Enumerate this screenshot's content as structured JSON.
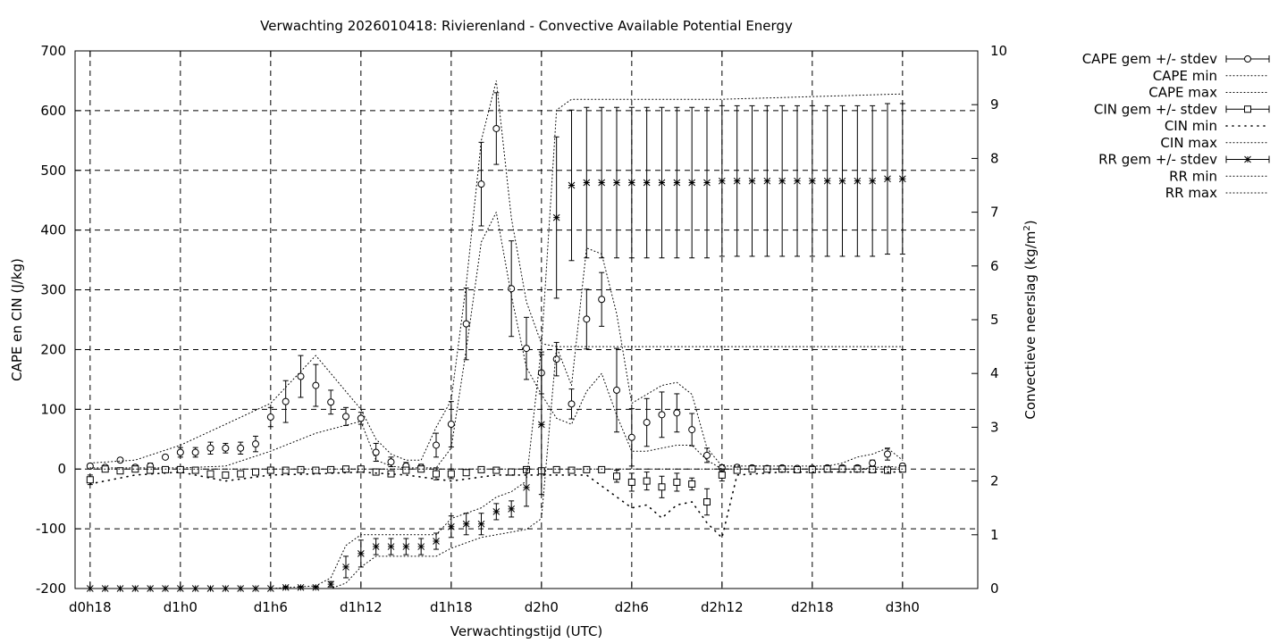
{
  "chart_data": {
    "type": "line",
    "title": "Verwachting 2026010418: Rivierenland - Convective Available Potential Energy",
    "xlabel": "Verwachtingstijd (UTC)",
    "ylabel": "CAPE en CIN (J/kg)",
    "y2label_main": "Convectieve neerslag (kg/m",
    "y2label_sup": "2",
    "y2label_end": ")",
    "x_range_hours": [
      -7,
      53
    ],
    "ylim": [
      -200,
      700
    ],
    "y2lim": [
      0,
      10
    ],
    "grid": true,
    "x_ticks": [
      {
        "label": "d0h18",
        "hour": -6
      },
      {
        "label": "d1h0",
        "hour": 0
      },
      {
        "label": "d1h6",
        "hour": 6
      },
      {
        "label": "d1h12",
        "hour": 12
      },
      {
        "label": "d1h18",
        "hour": 18
      },
      {
        "label": "d2h0",
        "hour": 24
      },
      {
        "label": "d2h6",
        "hour": 30
      },
      {
        "label": "d2h12",
        "hour": 36
      },
      {
        "label": "d2h18",
        "hour": 42
      },
      {
        "label": "d3h0",
        "hour": 48
      }
    ],
    "y_ticks": [
      -200,
      -100,
      0,
      100,
      200,
      300,
      400,
      500,
      600,
      700
    ],
    "y2_ticks": [
      0,
      1,
      2,
      3,
      4,
      5,
      6,
      7,
      8,
      9,
      10
    ],
    "legend": {
      "placement": "outside-right",
      "entries": [
        {
          "label": "CAPE gem +/- stdev",
          "style": "errorbar",
          "marker": "circle"
        },
        {
          "label": "CAPE min",
          "style": "dotted"
        },
        {
          "label": "CAPE max",
          "style": "dotted"
        },
        {
          "label": "CIN gem +/- stdev",
          "style": "errorbar",
          "marker": "square"
        },
        {
          "label": "CIN min",
          "style": "dotted-sparse"
        },
        {
          "label": "CIN max",
          "style": "dotted"
        },
        {
          "label": "RR gem +/- stdev",
          "style": "errorbar",
          "marker": "star"
        },
        {
          "label": "RR min",
          "style": "dotted"
        },
        {
          "label": "RR max",
          "style": "dotted"
        }
      ]
    },
    "series": [
      {
        "name": "CAPE gem +/- stdev",
        "axis": "y",
        "x": [
          -6,
          -5,
          -4,
          -3,
          -2,
          -1,
          0,
          1,
          2,
          3,
          4,
          5,
          6,
          7,
          8,
          9,
          10,
          11,
          12,
          13,
          14,
          15,
          16,
          17,
          18,
          19,
          20,
          21,
          22,
          23,
          24,
          25,
          26,
          27,
          28,
          29,
          30,
          31,
          32,
          33,
          34,
          35,
          36,
          37,
          38,
          39,
          40,
          41,
          42,
          43,
          44,
          45,
          46,
          47,
          48
        ],
        "values": [
          5,
          3,
          15,
          3,
          5,
          20,
          28,
          28,
          35,
          35,
          35,
          42,
          87,
          113,
          155,
          140,
          112,
          88,
          85,
          28,
          12,
          5,
          3,
          40,
          75,
          243,
          477,
          570,
          302,
          202,
          161,
          184,
          109,
          251,
          284,
          132,
          53,
          78,
          91,
          94,
          66,
          23,
          2,
          3,
          2,
          1,
          2,
          1,
          1,
          2,
          2,
          2,
          10,
          25,
          5
        ],
        "err": [
          4,
          3,
          2,
          4,
          5,
          3,
          8,
          8,
          10,
          8,
          10,
          13,
          16,
          35,
          35,
          35,
          20,
          15,
          10,
          15,
          8,
          6,
          5,
          20,
          38,
          60,
          70,
          60,
          80,
          52,
          35,
          28,
          25,
          50,
          45,
          70,
          48,
          40,
          38,
          32,
          27,
          12,
          5,
          4,
          3,
          3,
          3,
          3,
          3,
          3,
          4,
          4,
          5,
          10,
          4
        ]
      },
      {
        "name": "CAPE min",
        "axis": "y",
        "x": [
          -6,
          -3,
          0,
          3,
          6,
          9,
          12,
          13,
          14,
          15,
          16,
          17,
          18,
          19,
          20,
          21,
          22,
          23,
          24,
          25,
          26,
          27,
          28,
          29,
          30,
          31,
          32,
          33,
          34,
          35,
          36,
          37,
          38,
          39,
          40,
          41,
          42,
          43,
          44,
          45,
          46,
          47,
          48
        ],
        "values": [
          2,
          2,
          2,
          5,
          30,
          60,
          80,
          15,
          5,
          2,
          2,
          2,
          35,
          200,
          380,
          430,
          290,
          170,
          125,
          85,
          75,
          130,
          160,
          90,
          30,
          30,
          35,
          40,
          40,
          15,
          0,
          0,
          0,
          0,
          0,
          0,
          0,
          0,
          0,
          0,
          2,
          5,
          2
        ]
      },
      {
        "name": "CAPE max",
        "axis": "y",
        "x": [
          -6,
          -3,
          0,
          3,
          6,
          9,
          12,
          13,
          14,
          15,
          16,
          17,
          18,
          19,
          20,
          21,
          22,
          23,
          24,
          25,
          26,
          27,
          28,
          29,
          30,
          31,
          32,
          33,
          34,
          35,
          36,
          37,
          38,
          39,
          40,
          41,
          42,
          43,
          44,
          45,
          46,
          47,
          48
        ],
        "values": [
          10,
          15,
          40,
          75,
          110,
          190,
          100,
          50,
          25,
          15,
          15,
          70,
          115,
          310,
          550,
          650,
          420,
          280,
          210,
          205,
          140,
          370,
          360,
          260,
          110,
          125,
          140,
          145,
          125,
          35,
          5,
          5,
          5,
          5,
          5,
          5,
          5,
          5,
          10,
          20,
          25,
          35,
          15
        ]
      },
      {
        "name": "CIN gem +/- stdev",
        "axis": "y",
        "x": [
          -6,
          -5,
          -4,
          -3,
          -2,
          -1,
          0,
          1,
          2,
          3,
          4,
          5,
          6,
          7,
          8,
          9,
          10,
          11,
          12,
          13,
          14,
          15,
          16,
          17,
          18,
          19,
          20,
          21,
          22,
          23,
          24,
          25,
          26,
          27,
          28,
          29,
          30,
          31,
          32,
          33,
          34,
          35,
          36,
          37,
          38,
          39,
          40,
          41,
          42,
          43,
          44,
          45,
          46,
          47,
          48
        ],
        "values": [
          -18,
          0,
          -3,
          0,
          -2,
          -1,
          -1,
          -2,
          -8,
          -10,
          -8,
          -5,
          -2,
          -2,
          -1,
          -2,
          -1,
          0,
          0,
          -5,
          -8,
          -2,
          0,
          -8,
          -8,
          -6,
          -1,
          -2,
          -5,
          -1,
          -3,
          -1,
          -2,
          -1,
          -1,
          -12,
          -22,
          -20,
          -30,
          -22,
          -25,
          -55,
          -10,
          -2,
          0,
          0,
          0,
          -1,
          -1,
          0,
          0,
          0,
          -1,
          -2,
          0
        ],
        "err": [
          8,
          3,
          2,
          3,
          3,
          2,
          2,
          3,
          5,
          5,
          4,
          3,
          2,
          2,
          2,
          2,
          2,
          2,
          2,
          4,
          4,
          3,
          2,
          10,
          8,
          4,
          2,
          2,
          3,
          2,
          2,
          2,
          2,
          2,
          2,
          10,
          15,
          15,
          18,
          15,
          10,
          22,
          10,
          4,
          2,
          2,
          2,
          2,
          2,
          2,
          2,
          2,
          2,
          3,
          2
        ]
      },
      {
        "name": "CIN min",
        "axis": "y",
        "x": [
          -6,
          -3,
          0,
          3,
          6,
          9,
          12,
          15,
          18,
          21,
          24,
          27,
          30,
          31,
          32,
          33,
          34,
          35,
          36,
          37,
          40,
          44,
          48
        ],
        "values": [
          -25,
          -10,
          -5,
          -20,
          -10,
          -8,
          -5,
          -10,
          -20,
          -10,
          -10,
          -10,
          -65,
          -60,
          -82,
          -60,
          -55,
          -90,
          -115,
          -10,
          -5,
          -5,
          -5
        ]
      },
      {
        "name": "CIN max",
        "axis": "y",
        "x": [
          -6,
          0,
          6,
          12,
          18,
          24,
          30,
          36,
          42,
          48
        ],
        "values": [
          0,
          0,
          0,
          0,
          0,
          0,
          0,
          0,
          0,
          0
        ]
      },
      {
        "name": "RR gem +/- stdev",
        "axis": "y2",
        "x": [
          -6,
          -5,
          -4,
          -3,
          -2,
          -1,
          0,
          1,
          2,
          3,
          4,
          5,
          6,
          7,
          8,
          9,
          10,
          11,
          12,
          13,
          14,
          15,
          16,
          17,
          18,
          19,
          20,
          21,
          22,
          23,
          24,
          25,
          26,
          27,
          28,
          29,
          30,
          31,
          32,
          33,
          34,
          35,
          36,
          37,
          38,
          39,
          40,
          41,
          42,
          43,
          44,
          45,
          46,
          47,
          48
        ],
        "values": [
          0,
          0,
          0,
          0,
          0,
          0,
          0,
          0,
          0,
          0,
          0,
          0,
          0,
          0.02,
          0.02,
          0.02,
          0.08,
          0.4,
          0.65,
          0.78,
          0.78,
          0.78,
          0.78,
          0.88,
          1.15,
          1.2,
          1.2,
          1.43,
          1.48,
          1.88,
          3.05,
          6.9,
          7.5,
          7.55,
          7.55,
          7.55,
          7.55,
          7.55,
          7.55,
          7.55,
          7.55,
          7.55,
          7.58,
          7.58,
          7.58,
          7.58,
          7.58,
          7.58,
          7.58,
          7.58,
          7.58,
          7.58,
          7.58,
          7.62,
          7.62
        ],
        "err": [
          0,
          0,
          0,
          0,
          0,
          0,
          0,
          0,
          0,
          0,
          0,
          0,
          0,
          0.02,
          0.02,
          0.02,
          0.05,
          0.2,
          0.25,
          0.15,
          0.15,
          0.15,
          0.15,
          0.15,
          0.2,
          0.2,
          0.2,
          0.15,
          0.15,
          0.35,
          1.3,
          1.5,
          1.4,
          1.4,
          1.4,
          1.4,
          1.4,
          1.4,
          1.4,
          1.4,
          1.4,
          1.4,
          1.4,
          1.4,
          1.4,
          1.4,
          1.4,
          1.4,
          1.4,
          1.4,
          1.4,
          1.4,
          1.4,
          1.4,
          1.4
        ]
      },
      {
        "name": "RR min",
        "axis": "y2",
        "x": [
          -6,
          0,
          6,
          9,
          10,
          11,
          12,
          13,
          15,
          17,
          18,
          19,
          20,
          21,
          22,
          23,
          24,
          25,
          26,
          27,
          30,
          36,
          42,
          48
        ],
        "values": [
          0,
          0,
          0,
          0,
          0,
          0.1,
          0.4,
          0.6,
          0.6,
          0.6,
          0.75,
          0.85,
          0.95,
          1,
          1.05,
          1.1,
          1.3,
          4.5,
          4.5,
          4.5,
          4.5,
          4.5,
          4.5,
          4.5
        ]
      },
      {
        "name": "RR max",
        "axis": "y2",
        "x": [
          -6,
          0,
          6,
          9,
          10,
          11,
          12,
          13,
          15,
          17,
          18,
          19,
          20,
          21,
          22,
          23,
          24,
          25,
          26,
          27,
          30,
          36,
          42,
          48
        ],
        "values": [
          0,
          0,
          0,
          0.05,
          0.2,
          0.8,
          1,
          1,
          1,
          1,
          1.3,
          1.4,
          1.5,
          1.7,
          1.8,
          2,
          4.5,
          8.9,
          9.1,
          9.1,
          9.1,
          9.1,
          9.15,
          9.2
        ]
      }
    ]
  }
}
